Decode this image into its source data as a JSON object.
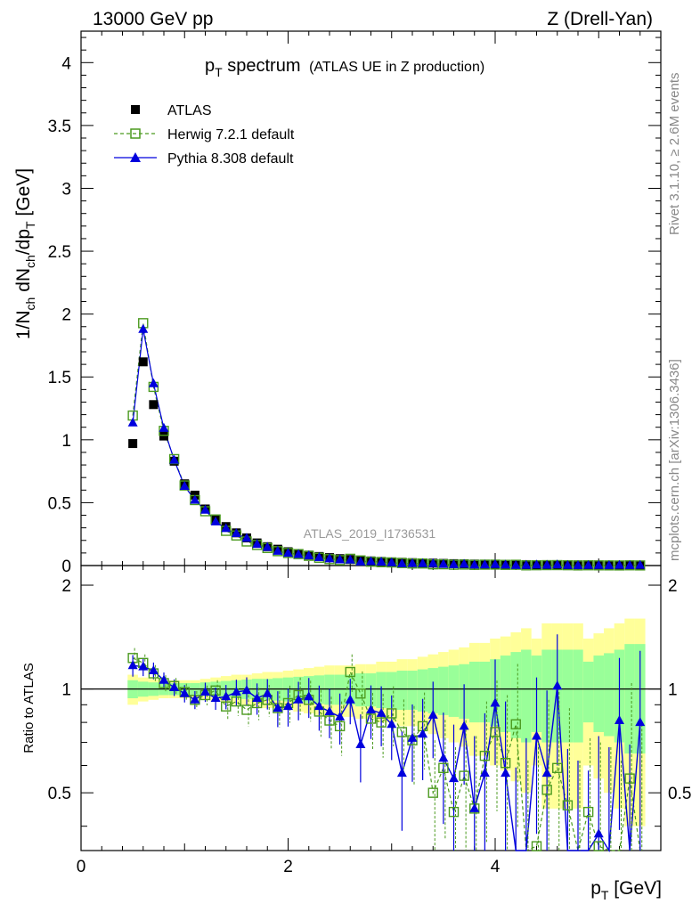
{
  "header": {
    "left": "13000 GeV pp",
    "right": "Z (Drell-Yan)"
  },
  "side": {
    "rivet": "Rivet 3.1.10, ≥ 2.6M events",
    "mcplots": "mcplots.cern.ch [arXiv:1306.3436]"
  },
  "chart_data": {
    "type": "scatter",
    "title": {
      "main": "p",
      "main_sub": "T",
      "main_rest": " spectrum",
      "detail": "(ATLAS UE in Z production)"
    },
    "analysis_id": "ATLAS_2019_I1736531",
    "xlabel": "p",
    "xlabel_sub": "T",
    "xlabel_unit": " [GeV]",
    "ylabel_parts": [
      "1/N",
      "ch",
      " dN",
      "ch",
      "/dp",
      "T",
      " [GeV]"
    ],
    "ratio_ylabel": "Ratio to ATLAS",
    "xlim": [
      0,
      5.6
    ],
    "ylim": [
      0,
      4.25
    ],
    "ratio_ylim": [
      0.34,
      2.28
    ],
    "x_ticks": [
      "0",
      "2",
      "4"
    ],
    "y_ticks": [
      "0",
      "0.5",
      "1",
      "1.5",
      "2",
      "2.5",
      "3",
      "3.5",
      "4"
    ],
    "ratio_ticks": [
      "0.5",
      "1",
      "2"
    ],
    "legend_position": "top-left",
    "legend": [
      "ATLAS",
      "Herwig 7.2.1 default",
      "Pythia 8.308 default"
    ],
    "colors": {
      "atlas": "#000000",
      "herwig": "#4b9a1f",
      "pythia": "#0000dd",
      "band_inner": "#99ff99",
      "band_outer": "#ffff99"
    },
    "x": [
      0.5,
      0.6,
      0.7,
      0.8,
      0.9,
      1.0,
      1.1,
      1.2,
      1.3,
      1.4,
      1.5,
      1.6,
      1.7,
      1.8,
      1.9,
      2.0,
      2.1,
      2.2,
      2.3,
      2.4,
      2.5,
      2.6,
      2.7,
      2.8,
      2.9,
      3.0,
      3.1,
      3.2,
      3.3,
      3.4,
      3.5,
      3.6,
      3.7,
      3.8,
      3.9,
      4.0,
      4.1,
      4.2,
      4.3,
      4.4,
      4.5,
      4.6,
      4.7,
      4.8,
      4.9,
      5.0,
      5.1,
      5.2,
      5.3,
      5.4
    ],
    "atlas": [
      0.97,
      1.62,
      1.28,
      1.03,
      0.83,
      0.65,
      0.56,
      0.45,
      0.37,
      0.31,
      0.26,
      0.22,
      0.18,
      0.15,
      0.13,
      0.11,
      0.095,
      0.083,
      0.072,
      0.063,
      0.055,
      0.048,
      0.042,
      0.037,
      0.033,
      0.029,
      0.026,
      0.023,
      0.021,
      0.019,
      0.017,
      0.015,
      0.014,
      0.012,
      0.011,
      0.01,
      0.009,
      0.008,
      0.0075,
      0.007,
      0.0065,
      0.006,
      0.0055,
      0.005,
      0.0046,
      0.0042,
      0.0039,
      0.0036,
      0.0033,
      0.003
    ],
    "herwig_ratio": [
      1.23,
      1.19,
      1.11,
      1.04,
      1.02,
      0.98,
      0.93,
      0.96,
      0.99,
      0.89,
      0.92,
      0.87,
      0.91,
      0.93,
      0.88,
      0.91,
      0.96,
      0.93,
      0.86,
      0.81,
      0.78,
      1.12,
      0.97,
      0.82,
      0.8,
      0.85,
      0.75,
      0.71,
      0.78,
      0.5,
      0.59,
      0.44,
      0.56,
      0.45,
      0.64,
      0.75,
      0.61,
      0.79,
      0.2,
      0.35,
      0.51,
      0.59,
      0.46,
      0.2,
      0.44,
      0.35,
      0.3,
      0.2,
      0.55,
      0.3
    ],
    "pythia_ratio": [
      1.17,
      1.16,
      1.13,
      1.06,
      1.01,
      0.97,
      0.93,
      0.98,
      0.94,
      0.95,
      0.98,
      0.99,
      0.94,
      0.97,
      0.88,
      0.89,
      0.93,
      0.95,
      0.89,
      0.86,
      0.83,
      0.93,
      0.69,
      0.87,
      0.85,
      0.79,
      0.57,
      0.72,
      0.74,
      0.84,
      0.63,
      0.55,
      0.78,
      0.45,
      0.57,
      0.91,
      0.57,
      0.2,
      0.3,
      0.73,
      0.57,
      1.02,
      0.25,
      0.2,
      0.3,
      0.38,
      0.3,
      0.81,
      0.2,
      0.8
    ],
    "band_inner_halfwidth": [
      0.06,
      0.05,
      0.045,
      0.04,
      0.04,
      0.04,
      0.04,
      0.045,
      0.05,
      0.055,
      0.06,
      0.065,
      0.07,
      0.07,
      0.075,
      0.08,
      0.085,
      0.09,
      0.095,
      0.1,
      0.1,
      0.1,
      0.11,
      0.11,
      0.12,
      0.12,
      0.13,
      0.13,
      0.14,
      0.15,
      0.16,
      0.17,
      0.18,
      0.2,
      0.2,
      0.22,
      0.25,
      0.28,
      0.3,
      0.25,
      0.3,
      0.3,
      0.3,
      0.3,
      0.2,
      0.25,
      0.27,
      0.3,
      0.35,
      0.35
    ],
    "band_outer_halfwidth": [
      0.1,
      0.08,
      0.07,
      0.06,
      0.06,
      0.06,
      0.06,
      0.07,
      0.08,
      0.09,
      0.1,
      0.1,
      0.11,
      0.12,
      0.12,
      0.13,
      0.14,
      0.15,
      0.16,
      0.17,
      0.17,
      0.17,
      0.18,
      0.18,
      0.2,
      0.2,
      0.22,
      0.22,
      0.24,
      0.26,
      0.28,
      0.3,
      0.32,
      0.36,
      0.36,
      0.4,
      0.42,
      0.46,
      0.5,
      0.4,
      0.55,
      0.55,
      0.55,
      0.55,
      0.4,
      0.45,
      0.5,
      0.55,
      0.6,
      0.6
    ]
  }
}
